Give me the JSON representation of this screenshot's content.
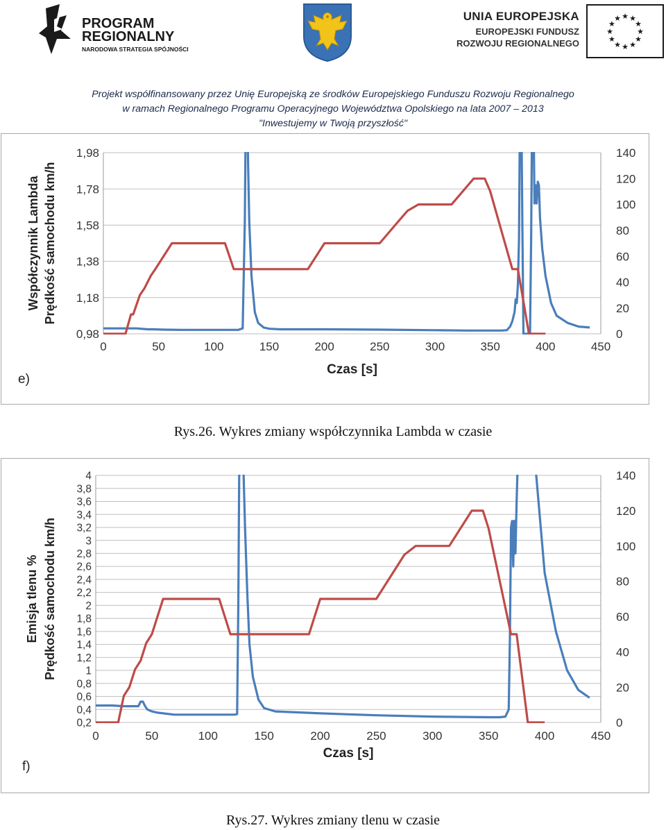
{
  "header": {
    "left_logo": {
      "line1": "PROGRAM",
      "line2": "REGIONALNY",
      "line3": "NARODOWA STRATEGIA SPÓJNOŚCI"
    },
    "right_logo": {
      "line1": "UNIA EUROPEJSKA",
      "line2": "EUROPEJSKI FUNDUSZ",
      "line3": "ROZWOJU REGIONALNEGO"
    },
    "notice_line1": "Projekt współfinansowany przez Unię Europejską ze środków Europejskiego Funduszu Rozwoju Regionalnego",
    "notice_line2": "w ramach Regionalnego Programu Operacyjnego Województwa Opolskiego na lata 2007 – 2013",
    "notice_line3": "\"Inwestujemy w Twoją przyszłość\""
  },
  "colors": {
    "series_blue": "#4a7ebb",
    "series_red": "#be4b48",
    "grid": "#bfbfbf",
    "eu_blue": "#ffffff",
    "eu_star": "#1a1a1a"
  },
  "captions": {
    "fig26": "Rys.26. Wykres zmiany współczynnika Lambda w czasie",
    "fig27": "Rys.27. Wykres zmiany tlenu w czasie"
  },
  "chart_data": [
    {
      "type": "line",
      "panel_label": "e)",
      "xlabel": "Czas [s]",
      "ylabel_line1": "Współczynnik Lambda",
      "ylabel_line2": "Prędkość samochodu   km/h",
      "x_ticks": [
        "0",
        "50",
        "100",
        "150",
        "200",
        "250",
        "300",
        "350",
        "400",
        "450"
      ],
      "y_ticks": [
        "0,98",
        "1,18",
        "1,38",
        "1,58",
        "1,78",
        "1,98"
      ],
      "y2_ticks": [
        "0",
        "20",
        "40",
        "60",
        "80",
        "100",
        "120",
        "140"
      ],
      "xlim": [
        0,
        450
      ],
      "ylim": [
        0.98,
        1.98
      ],
      "y2lim": [
        0,
        140
      ],
      "grid": true,
      "series": [
        {
          "axis": "left",
          "values_x": [
            0,
            15,
            30,
            40,
            45,
            55,
            70,
            90,
            110,
            122,
            126,
            128,
            129,
            130,
            131,
            132,
            134,
            137,
            140,
            145,
            150,
            160,
            200,
            250,
            300,
            330,
            360,
            365,
            368,
            370,
            372,
            373,
            374,
            375,
            376,
            377,
            378,
            379,
            380,
            385,
            386,
            387,
            388,
            389,
            390,
            391,
            392,
            393,
            394,
            395,
            397,
            400,
            405,
            410,
            420,
            430,
            440
          ],
          "values_y": [
            1.01,
            1.01,
            1.01,
            1.005,
            1.005,
            1.003,
            1.002,
            1.002,
            1.002,
            1.002,
            1.01,
            1.6,
            2.3,
            2.3,
            1.9,
            1.6,
            1.3,
            1.1,
            1.04,
            1.015,
            1.008,
            1.005,
            1.005,
            1.003,
            1.0,
            0.998,
            0.998,
            1.0,
            1.02,
            1.05,
            1.1,
            1.17,
            1.15,
            1.25,
            1.5,
            2.3,
            2.3,
            1.6,
            0.98,
            0.98,
            0.98,
            1.5,
            2.3,
            2.3,
            1.7,
            1.8,
            1.7,
            1.82,
            1.8,
            1.62,
            1.45,
            1.3,
            1.15,
            1.08,
            1.04,
            1.02,
            1.015
          ]
        },
        {
          "axis": "right",
          "values_x": [
            0,
            20,
            25,
            27,
            33,
            37,
            43,
            47,
            62,
            70,
            80,
            90,
            100,
            110,
            112,
            118,
            130,
            150,
            170,
            180,
            185,
            200,
            210,
            220,
            230,
            240,
            250,
            265,
            275,
            285,
            290,
            300,
            310,
            315,
            320,
            330,
            335,
            340,
            345,
            350,
            360,
            370,
            375,
            380,
            385,
            390,
            395,
            400
          ],
          "values_y": [
            0,
            0,
            15,
            15,
            30,
            35,
            45,
            50,
            70,
            70,
            70,
            70,
            70,
            70,
            65,
            50,
            50,
            50,
            50,
            50,
            50,
            70,
            70,
            70,
            70,
            70,
            70,
            85,
            95,
            100,
            100,
            100,
            100,
            100,
            105,
            115,
            120,
            120,
            120,
            110,
            80,
            50,
            50,
            25,
            0,
            0,
            0,
            0
          ]
        }
      ]
    },
    {
      "type": "line",
      "panel_label": "f)",
      "xlabel": "Czas [s]",
      "ylabel_line1": "Emisja tlenu    %",
      "ylabel_line2": "Prędkość samochodu   km/h",
      "x_ticks": [
        "0",
        "50",
        "100",
        "150",
        "200",
        "250",
        "300",
        "350",
        "400",
        "450"
      ],
      "y_ticks": [
        "0,2",
        "0,4",
        "0,6",
        "0,8",
        "1",
        "1,2",
        "1,4",
        "1,6",
        "1,8",
        "2",
        "2,2",
        "2,4",
        "2,6",
        "2,8",
        "3",
        "3,2",
        "3,4",
        "3,6",
        "3,8",
        "4"
      ],
      "y2_ticks": [
        "0",
        "20",
        "40",
        "60",
        "80",
        "100",
        "120",
        "140"
      ],
      "xlim": [
        0,
        450
      ],
      "ylim": [
        0.2,
        4
      ],
      "y2lim": [
        0,
        140
      ],
      "grid": true,
      "series": [
        {
          "axis": "left",
          "values_x": [
            0,
            15,
            25,
            38,
            40,
            42,
            44,
            46,
            50,
            55,
            60,
            70,
            100,
            115,
            124,
            126,
            127,
            128,
            129,
            130,
            131,
            133,
            135,
            137,
            140,
            145,
            150,
            160,
            200,
            250,
            300,
            350,
            360,
            365,
            368,
            369,
            370,
            371,
            372,
            373,
            374,
            375,
            376,
            378,
            380,
            390,
            395,
            400,
            410,
            420,
            430,
            440
          ],
          "values_y": [
            0.46,
            0.46,
            0.45,
            0.45,
            0.52,
            0.52,
            0.45,
            0.4,
            0.37,
            0.35,
            0.34,
            0.32,
            0.32,
            0.32,
            0.32,
            0.33,
            2.0,
            4.5,
            4.5,
            4.5,
            4.5,
            3.2,
            2.2,
            1.4,
            0.9,
            0.55,
            0.42,
            0.37,
            0.34,
            0.31,
            0.29,
            0.28,
            0.28,
            0.29,
            0.4,
            1.5,
            3.2,
            3.3,
            2.6,
            3.3,
            2.8,
            3.6,
            4.2,
            4.5,
            4.5,
            4.5,
            3.5,
            2.5,
            1.6,
            1.0,
            0.7,
            0.58
          ]
        },
        {
          "axis": "right",
          "values_x": [
            0,
            20,
            25,
            30,
            35,
            40,
            45,
            50,
            60,
            70,
            80,
            90,
            100,
            110,
            115,
            120,
            130,
            150,
            170,
            180,
            190,
            200,
            210,
            220,
            230,
            240,
            250,
            265,
            275,
            285,
            290,
            300,
            310,
            315,
            320,
            330,
            335,
            340,
            345,
            350,
            360,
            370,
            375,
            380,
            385,
            390,
            395,
            400
          ],
          "values_y": [
            0,
            0,
            15,
            20,
            30,
            35,
            45,
            50,
            70,
            70,
            70,
            70,
            70,
            70,
            60,
            50,
            50,
            50,
            50,
            50,
            50,
            70,
            70,
            70,
            70,
            70,
            70,
            85,
            95,
            100,
            100,
            100,
            100,
            100,
            105,
            115,
            120,
            120,
            120,
            110,
            80,
            50,
            50,
            25,
            0,
            0,
            0,
            0
          ]
        }
      ]
    }
  ]
}
